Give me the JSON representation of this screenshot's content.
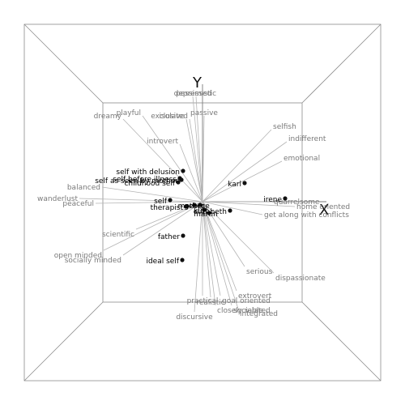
{
  "chart_data": {
    "type": "scatter",
    "title": "",
    "x_axis_label": "X",
    "y_axis_label": "Y",
    "xlim": [
      -1,
      1
    ],
    "ylim": [
      -1,
      1
    ],
    "grid": false,
    "origin": {
      "x": 0,
      "y": 0
    },
    "elements": [
      {
        "name": "self with delusion",
        "x": -0.24,
        "y": 0.38
      },
      {
        "name": "self before illness",
        "x": -0.28,
        "y": 0.29
      },
      {
        "name": "self as seen by mother",
        "x": -0.26,
        "y": 0.27
      },
      {
        "name": "childhood self",
        "x": -0.3,
        "y": 0.24
      },
      {
        "name": "self",
        "x": -0.4,
        "y": 0.02
      },
      {
        "name": "mother",
        "x": -0.1,
        "y": -0.04
      },
      {
        "name": "therapist",
        "x": -0.2,
        "y": -0.06
      },
      {
        "name": "george",
        "x": -0.03,
        "y": -0.04
      },
      {
        "name": "karl",
        "x": 0.52,
        "y": 0.23
      },
      {
        "name": "irene",
        "x": 1.02,
        "y": 0.04
      },
      {
        "name": "kurt",
        "x": 0.02,
        "y": -0.1
      },
      {
        "name": "elizabeth",
        "x": 0.34,
        "y": -0.11
      },
      {
        "name": "martin",
        "x": 0.08,
        "y": -0.14
      },
      {
        "name": "father",
        "x": -0.24,
        "y": -0.42
      },
      {
        "name": "ideal self",
        "x": -0.25,
        "y": -0.72
      }
    ],
    "constructs": [
      {
        "name": "depressed",
        "x": -0.12,
        "y": 1.3
      },
      {
        "name": "pessimistic",
        "x": -0.08,
        "y": 1.3
      },
      {
        "name": "playful",
        "x": -0.74,
        "y": 1.06
      },
      {
        "name": "dreamy",
        "x": -0.98,
        "y": 1.02
      },
      {
        "name": "exclusive",
        "x": -0.2,
        "y": 1.02
      },
      {
        "name": "isolated",
        "x": -0.16,
        "y": 1.02
      },
      {
        "name": "passive",
        "x": 0.02,
        "y": 1.06
      },
      {
        "name": "introvert",
        "x": -0.28,
        "y": 0.71
      },
      {
        "name": "selfish",
        "x": 0.85,
        "y": 0.89
      },
      {
        "name": "indifferent",
        "x": 1.04,
        "y": 0.74
      },
      {
        "name": "emotional",
        "x": 0.98,
        "y": 0.5
      },
      {
        "name": "balanced",
        "x": -1.24,
        "y": 0.18
      },
      {
        "name": "wanderlust",
        "x": -1.52,
        "y": 0.04
      },
      {
        "name": "peaceful",
        "x": -1.32,
        "y": -0.02
      },
      {
        "name": "quarrelsome",
        "x": 0.86,
        "y": 0.0
      },
      {
        "name": "home oriented",
        "x": 1.14,
        "y": -0.06
      },
      {
        "name": "get along with conflicts",
        "x": 0.74,
        "y": -0.16
      },
      {
        "name": "scientific",
        "x": -0.82,
        "y": -0.34
      },
      {
        "name": "open minded",
        "x": -1.22,
        "y": -0.6
      },
      {
        "name": "socially minded",
        "x": -0.98,
        "y": -0.66
      },
      {
        "name": "serious",
        "x": 0.52,
        "y": -0.8
      },
      {
        "name": "dispassionate",
        "x": 0.88,
        "y": -0.88
      },
      {
        "name": "extrovert",
        "x": 0.42,
        "y": -1.1
      },
      {
        "name": "practical",
        "x": 0.0,
        "y": -1.16
      },
      {
        "name": "realistic",
        "x": 0.1,
        "y": -1.18
      },
      {
        "name": "goal oriented",
        "x": 0.22,
        "y": -1.16
      },
      {
        "name": "closely related",
        "x": 0.16,
        "y": -1.28
      },
      {
        "name": "sociable",
        "x": 0.36,
        "y": -1.28
      },
      {
        "name": "integrated",
        "x": 0.44,
        "y": -1.32
      },
      {
        "name": "discursive",
        "x": -0.1,
        "y": -1.36
      }
    ]
  },
  "colors": {
    "box": "#8c8c8c",
    "rays": "#b4b4b4",
    "construct_text": "#7a7a7a",
    "element_text": "#000000",
    "points": "#111111"
  }
}
